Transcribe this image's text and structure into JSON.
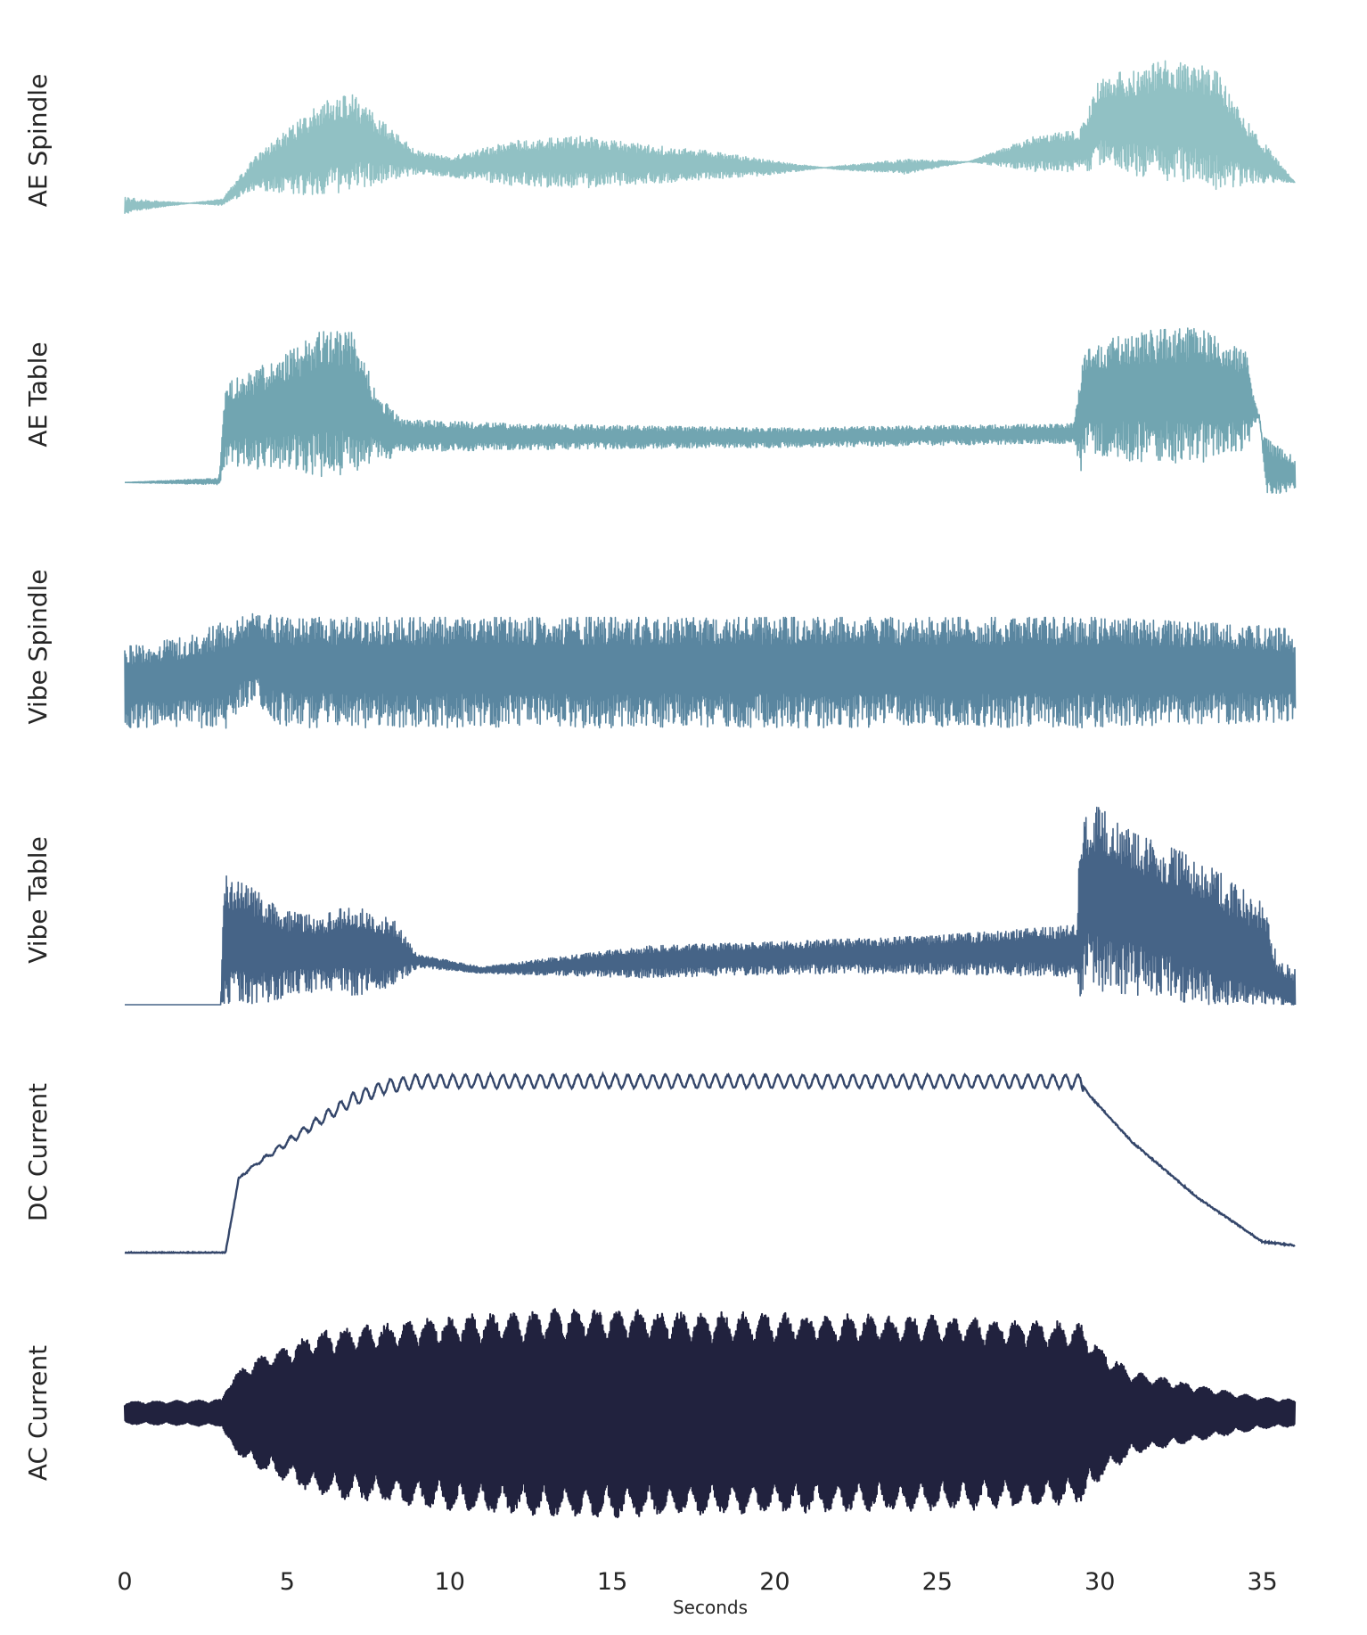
{
  "chart_data": {
    "type": "line",
    "xlabel": "Seconds",
    "xlim": [
      0,
      36
    ],
    "x_ticks": [
      0,
      5,
      10,
      15,
      20,
      25,
      30,
      35
    ],
    "x_tick_labels": [
      "0",
      "5",
      "10",
      "15",
      "20",
      "25",
      "30",
      "35"
    ],
    "shared_x_axis": true,
    "grid": false,
    "y_ticks_visible": false,
    "series": [
      {
        "name": "AE Spindle",
        "color": "#91c1c4",
        "shape": "noisy",
        "envelope": [
          [
            0,
            0.15
          ],
          [
            1,
            0.18
          ],
          [
            2,
            0.2
          ],
          [
            3,
            0.22
          ],
          [
            4,
            0.42
          ],
          [
            5,
            0.55
          ],
          [
            6,
            0.68
          ],
          [
            7,
            0.72
          ],
          [
            8,
            0.58
          ],
          [
            9,
            0.45
          ],
          [
            10,
            0.42
          ],
          [
            12,
            0.5
          ],
          [
            14,
            0.52
          ],
          [
            16,
            0.48
          ],
          [
            18,
            0.45
          ],
          [
            20,
            0.4
          ],
          [
            22,
            0.36
          ],
          [
            24,
            0.34
          ],
          [
            26,
            0.4
          ],
          [
            28,
            0.52
          ],
          [
            29.4,
            0.55
          ],
          [
            30,
            0.8
          ],
          [
            32,
            0.88
          ],
          [
            33.5,
            0.85
          ],
          [
            34.5,
            0.6
          ],
          [
            35.5,
            0.4
          ],
          [
            36,
            0.3
          ]
        ],
        "baseline": [
          [
            0,
            0.2
          ],
          [
            3,
            0.2
          ],
          [
            4,
            0.32
          ],
          [
            7,
            0.42
          ],
          [
            10,
            0.36
          ],
          [
            20,
            0.36
          ],
          [
            29.4,
            0.42
          ],
          [
            30,
            0.52
          ],
          [
            33,
            0.5
          ],
          [
            36,
            0.3
          ]
        ],
        "floor": 0.12
      },
      {
        "name": "AE Table",
        "color": "#71a5b1",
        "shape": "noisy",
        "envelope": [
          [
            0,
            0.08
          ],
          [
            2.9,
            0.1
          ],
          [
            3.1,
            0.55
          ],
          [
            4,
            0.62
          ],
          [
            5,
            0.7
          ],
          [
            6,
            0.8
          ],
          [
            7,
            0.8
          ],
          [
            7.8,
            0.5
          ],
          [
            8.5,
            0.38
          ],
          [
            12,
            0.36
          ],
          [
            20,
            0.34
          ],
          [
            29.2,
            0.36
          ],
          [
            29.5,
            0.72
          ],
          [
            31,
            0.8
          ],
          [
            33,
            0.82
          ],
          [
            34.5,
            0.7
          ],
          [
            35,
            0.3
          ],
          [
            36,
            0.2
          ]
        ],
        "baseline": [
          [
            0,
            0.08
          ],
          [
            2.9,
            0.08
          ],
          [
            3.1,
            0.3
          ],
          [
            7,
            0.36
          ],
          [
            8,
            0.28
          ],
          [
            20,
            0.28
          ],
          [
            29.4,
            0.3
          ],
          [
            29.6,
            0.4
          ],
          [
            34.9,
            0.4
          ],
          [
            35.1,
            0.1
          ],
          [
            36,
            0.1
          ]
        ],
        "floor": 0.02
      },
      {
        "name": "Vibe Spindle",
        "color": "#5a86a0",
        "shape": "noisy",
        "envelope": [
          [
            0,
            0.5
          ],
          [
            2,
            0.55
          ],
          [
            3,
            0.62
          ],
          [
            4,
            0.66
          ],
          [
            5,
            0.64
          ],
          [
            10,
            0.64
          ],
          [
            20,
            0.64
          ],
          [
            30,
            0.64
          ],
          [
            35,
            0.6
          ],
          [
            36,
            0.58
          ]
        ],
        "baseline": [
          [
            0,
            0.25
          ],
          [
            3,
            0.28
          ],
          [
            4,
            0.4
          ],
          [
            4.5,
            0.32
          ],
          [
            5,
            0.3
          ],
          [
            36,
            0.3
          ]
        ],
        "floor": 0.03
      },
      {
        "name": "Vibe Table",
        "color": "#466487",
        "shape": "noisy",
        "envelope": [
          [
            0,
            0.0
          ],
          [
            2.95,
            0.0
          ],
          [
            3.05,
            0.62
          ],
          [
            4,
            0.55
          ],
          [
            5,
            0.45
          ],
          [
            6,
            0.42
          ],
          [
            7,
            0.48
          ],
          [
            8.3,
            0.4
          ],
          [
            9,
            0.24
          ],
          [
            11,
            0.18
          ],
          [
            13,
            0.22
          ],
          [
            16,
            0.28
          ],
          [
            20,
            0.3
          ],
          [
            25,
            0.33
          ],
          [
            29.3,
            0.38
          ],
          [
            29.4,
            0.9
          ],
          [
            30,
            0.95
          ],
          [
            31,
            0.82
          ],
          [
            33,
            0.7
          ],
          [
            35,
            0.5
          ],
          [
            35.5,
            0.2
          ],
          [
            36,
            0.18
          ]
        ],
        "baseline": [
          [
            0,
            0.0
          ],
          [
            2.95,
            0.0
          ],
          [
            3.05,
            0.18
          ],
          [
            9,
            0.2
          ],
          [
            11,
            0.16
          ],
          [
            20,
            0.2
          ],
          [
            29.3,
            0.22
          ],
          [
            29.5,
            0.4
          ],
          [
            33,
            0.22
          ],
          [
            35.5,
            0.05
          ],
          [
            36,
            0.0
          ]
        ],
        "floor": 0.0
      },
      {
        "name": "DC Current",
        "color": "#34466a",
        "shape": "ramp",
        "envelope": [
          [
            0,
            0.0
          ],
          [
            3.1,
            0.0
          ],
          [
            3.5,
            0.4
          ],
          [
            3.8,
            0.45
          ],
          [
            5,
            0.6
          ],
          [
            6,
            0.72
          ],
          [
            7,
            0.83
          ],
          [
            8,
            0.9
          ],
          [
            9,
            0.93
          ],
          [
            29.4,
            0.93
          ],
          [
            29.7,
            0.85
          ],
          [
            31,
            0.6
          ],
          [
            33,
            0.3
          ],
          [
            35,
            0.06
          ],
          [
            36,
            0.04
          ]
        ],
        "ripple": 0.035
      },
      {
        "name": "AC Current",
        "color": "#21223e",
        "shape": "ac",
        "envelope": [
          [
            0,
            0.1
          ],
          [
            3,
            0.12
          ],
          [
            3.2,
            0.3
          ],
          [
            4,
            0.5
          ],
          [
            6,
            0.75
          ],
          [
            10,
            0.88
          ],
          [
            14,
            0.95
          ],
          [
            20,
            0.9
          ],
          [
            25,
            0.88
          ],
          [
            28,
            0.85
          ],
          [
            29.5,
            0.8
          ],
          [
            30,
            0.6
          ],
          [
            31,
            0.38
          ],
          [
            33,
            0.25
          ],
          [
            35,
            0.14
          ],
          [
            36,
            0.12
          ]
        ]
      }
    ]
  }
}
